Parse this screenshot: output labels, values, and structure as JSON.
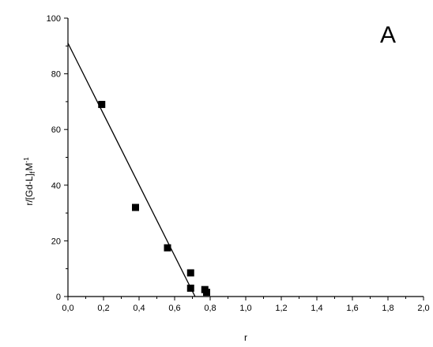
{
  "chart_data": {
    "type": "scatter",
    "panel_label": "A",
    "xlabel": "r",
    "ylabel_main": "r/[Gd-L]",
    "ylabel_sub": "f",
    "ylabel_unit": "M",
    "ylabel_sup": "-1",
    "xlim": [
      0.0,
      2.0
    ],
    "ylim": [
      0,
      100
    ],
    "x_ticks": [
      0.0,
      0.2,
      0.4,
      0.6,
      0.8,
      1.0,
      1.2,
      1.4,
      1.6,
      1.8,
      2.0
    ],
    "x_tick_labels": [
      "0,0",
      "0,2",
      "0,4",
      "0,6",
      "0,8",
      "1,0",
      "1,2",
      "1,4",
      "1,6",
      "1,8",
      "2,0"
    ],
    "y_ticks": [
      0,
      20,
      40,
      60,
      80,
      100
    ],
    "y_tick_labels": [
      "0",
      "20",
      "40",
      "60",
      "80",
      "100"
    ],
    "grid": false,
    "series": [
      {
        "type": "scatter",
        "marker": "square",
        "color": "#000000",
        "points": [
          {
            "x": 0.19,
            "y": 69
          },
          {
            "x": 0.38,
            "y": 32
          },
          {
            "x": 0.56,
            "y": 17.5
          },
          {
            "x": 0.69,
            "y": 8.5
          },
          {
            "x": 0.69,
            "y": 3
          },
          {
            "x": 0.77,
            "y": 2.5
          },
          {
            "x": 0.78,
            "y": 1.5
          }
        ]
      },
      {
        "type": "line",
        "color": "#000000",
        "points": [
          {
            "x": 0.0,
            "y": 91
          },
          {
            "x": 0.715,
            "y": 0
          }
        ]
      }
    ]
  }
}
